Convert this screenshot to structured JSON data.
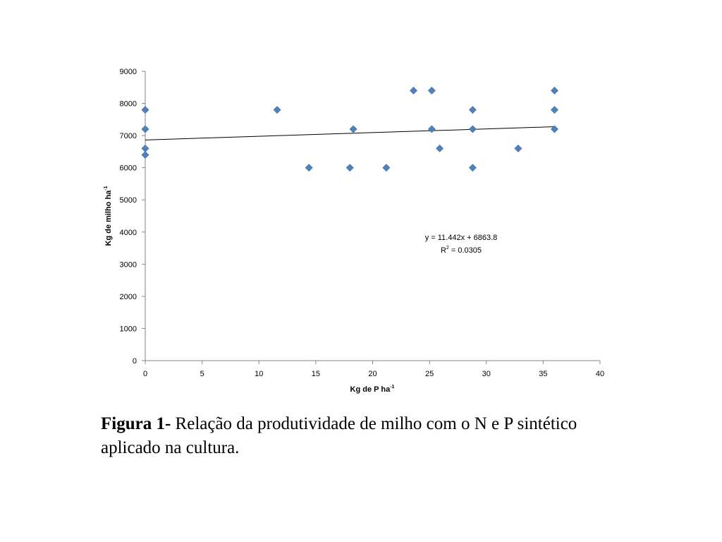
{
  "chart_data": {
    "type": "scatter",
    "xlabel": "Kg de P ha",
    "xlabel_sup": "-1",
    "ylabel": "Kg de milho ha",
    "ylabel_sup": "-1",
    "xlim": [
      0,
      40
    ],
    "ylim": [
      0,
      9000
    ],
    "xticks": [
      "0",
      "5",
      "10",
      "15",
      "20",
      "25",
      "30",
      "35",
      "40"
    ],
    "yticks": [
      "0",
      "1000",
      "2000",
      "3000",
      "4000",
      "5000",
      "6000",
      "7000",
      "8000",
      "9000"
    ],
    "grid": false,
    "legend": "none",
    "marker": "diamond",
    "marker_color": "#4f81bd",
    "points": [
      {
        "x": 0,
        "y": 7800
      },
      {
        "x": 0,
        "y": 7200
      },
      {
        "x": 0,
        "y": 6600
      },
      {
        "x": 0,
        "y": 6400
      },
      {
        "x": 11.6,
        "y": 7800
      },
      {
        "x": 14.4,
        "y": 6000
      },
      {
        "x": 18.0,
        "y": 6000
      },
      {
        "x": 18.3,
        "y": 7200
      },
      {
        "x": 21.2,
        "y": 6000
      },
      {
        "x": 23.6,
        "y": 8400
      },
      {
        "x": 25.2,
        "y": 8400
      },
      {
        "x": 25.2,
        "y": 7200
      },
      {
        "x": 25.9,
        "y": 6600
      },
      {
        "x": 28.8,
        "y": 7800
      },
      {
        "x": 28.8,
        "y": 7200
      },
      {
        "x": 28.8,
        "y": 6000
      },
      {
        "x": 32.8,
        "y": 6600
      },
      {
        "x": 36.0,
        "y": 8400
      },
      {
        "x": 36.0,
        "y": 7800
      },
      {
        "x": 36.0,
        "y": 7200
      }
    ],
    "trendline": {
      "slope": 11.442,
      "intercept": 6863.8,
      "x_range": [
        0,
        36
      ],
      "color": "#000000",
      "equation": "y = 11.442x + 6863.8",
      "r2_label": "R",
      "r2_sup": "2",
      "r2_value": " = 0.0305"
    }
  },
  "caption": {
    "prefix": "Figura 1",
    "dash": "-",
    "text": " Relação da produtividade de milho com o N e P sintético aplicado na cultura."
  }
}
